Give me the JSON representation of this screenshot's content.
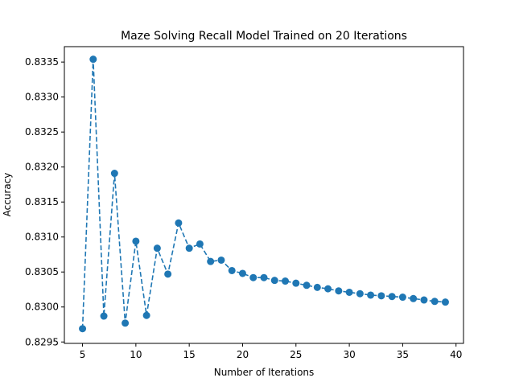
{
  "chart_data": {
    "type": "line",
    "title": "Maze Solving Recall Model Trained on 20 Iterations",
    "xlabel": "Number of Iterations",
    "ylabel": "Accuracy",
    "xlim": [
      3.3,
      40.7
    ],
    "ylim": [
      0.82948,
      0.83372
    ],
    "xticks": [
      5,
      10,
      15,
      20,
      25,
      30,
      35,
      40
    ],
    "yticks": [
      0.8295,
      0.83,
      0.8305,
      0.831,
      0.8315,
      0.832,
      0.8325,
      0.833,
      0.8335
    ],
    "ytick_labels": [
      "0.8295",
      "0.8300",
      "0.8305",
      "0.8310",
      "0.8315",
      "0.8320",
      "0.8325",
      "0.8330",
      "0.8335"
    ],
    "grid": false,
    "line_style": "dashed",
    "marker": "circle",
    "color": "#1f77b4",
    "series": [
      {
        "x": [
          5,
          6,
          7,
          8,
          9,
          10,
          11,
          12,
          13,
          14,
          15,
          16,
          17,
          18,
          19,
          20,
          21,
          22,
          23,
          24,
          25,
          26,
          27,
          28,
          29,
          30,
          31,
          32,
          33,
          34,
          35,
          36,
          37,
          38,
          39
        ],
        "values": [
          0.82969,
          0.83354,
          0.82987,
          0.83191,
          0.82977,
          0.83094,
          0.82988,
          0.83084,
          0.83047,
          0.8312,
          0.83084,
          0.8309,
          0.83065,
          0.83067,
          0.83052,
          0.83048,
          0.83042,
          0.83042,
          0.83038,
          0.83037,
          0.83034,
          0.83031,
          0.83028,
          0.83026,
          0.83023,
          0.83021,
          0.83019,
          0.83017,
          0.83016,
          0.83015,
          0.83014,
          0.83012,
          0.8301,
          0.83008,
          0.83007
        ]
      }
    ]
  }
}
